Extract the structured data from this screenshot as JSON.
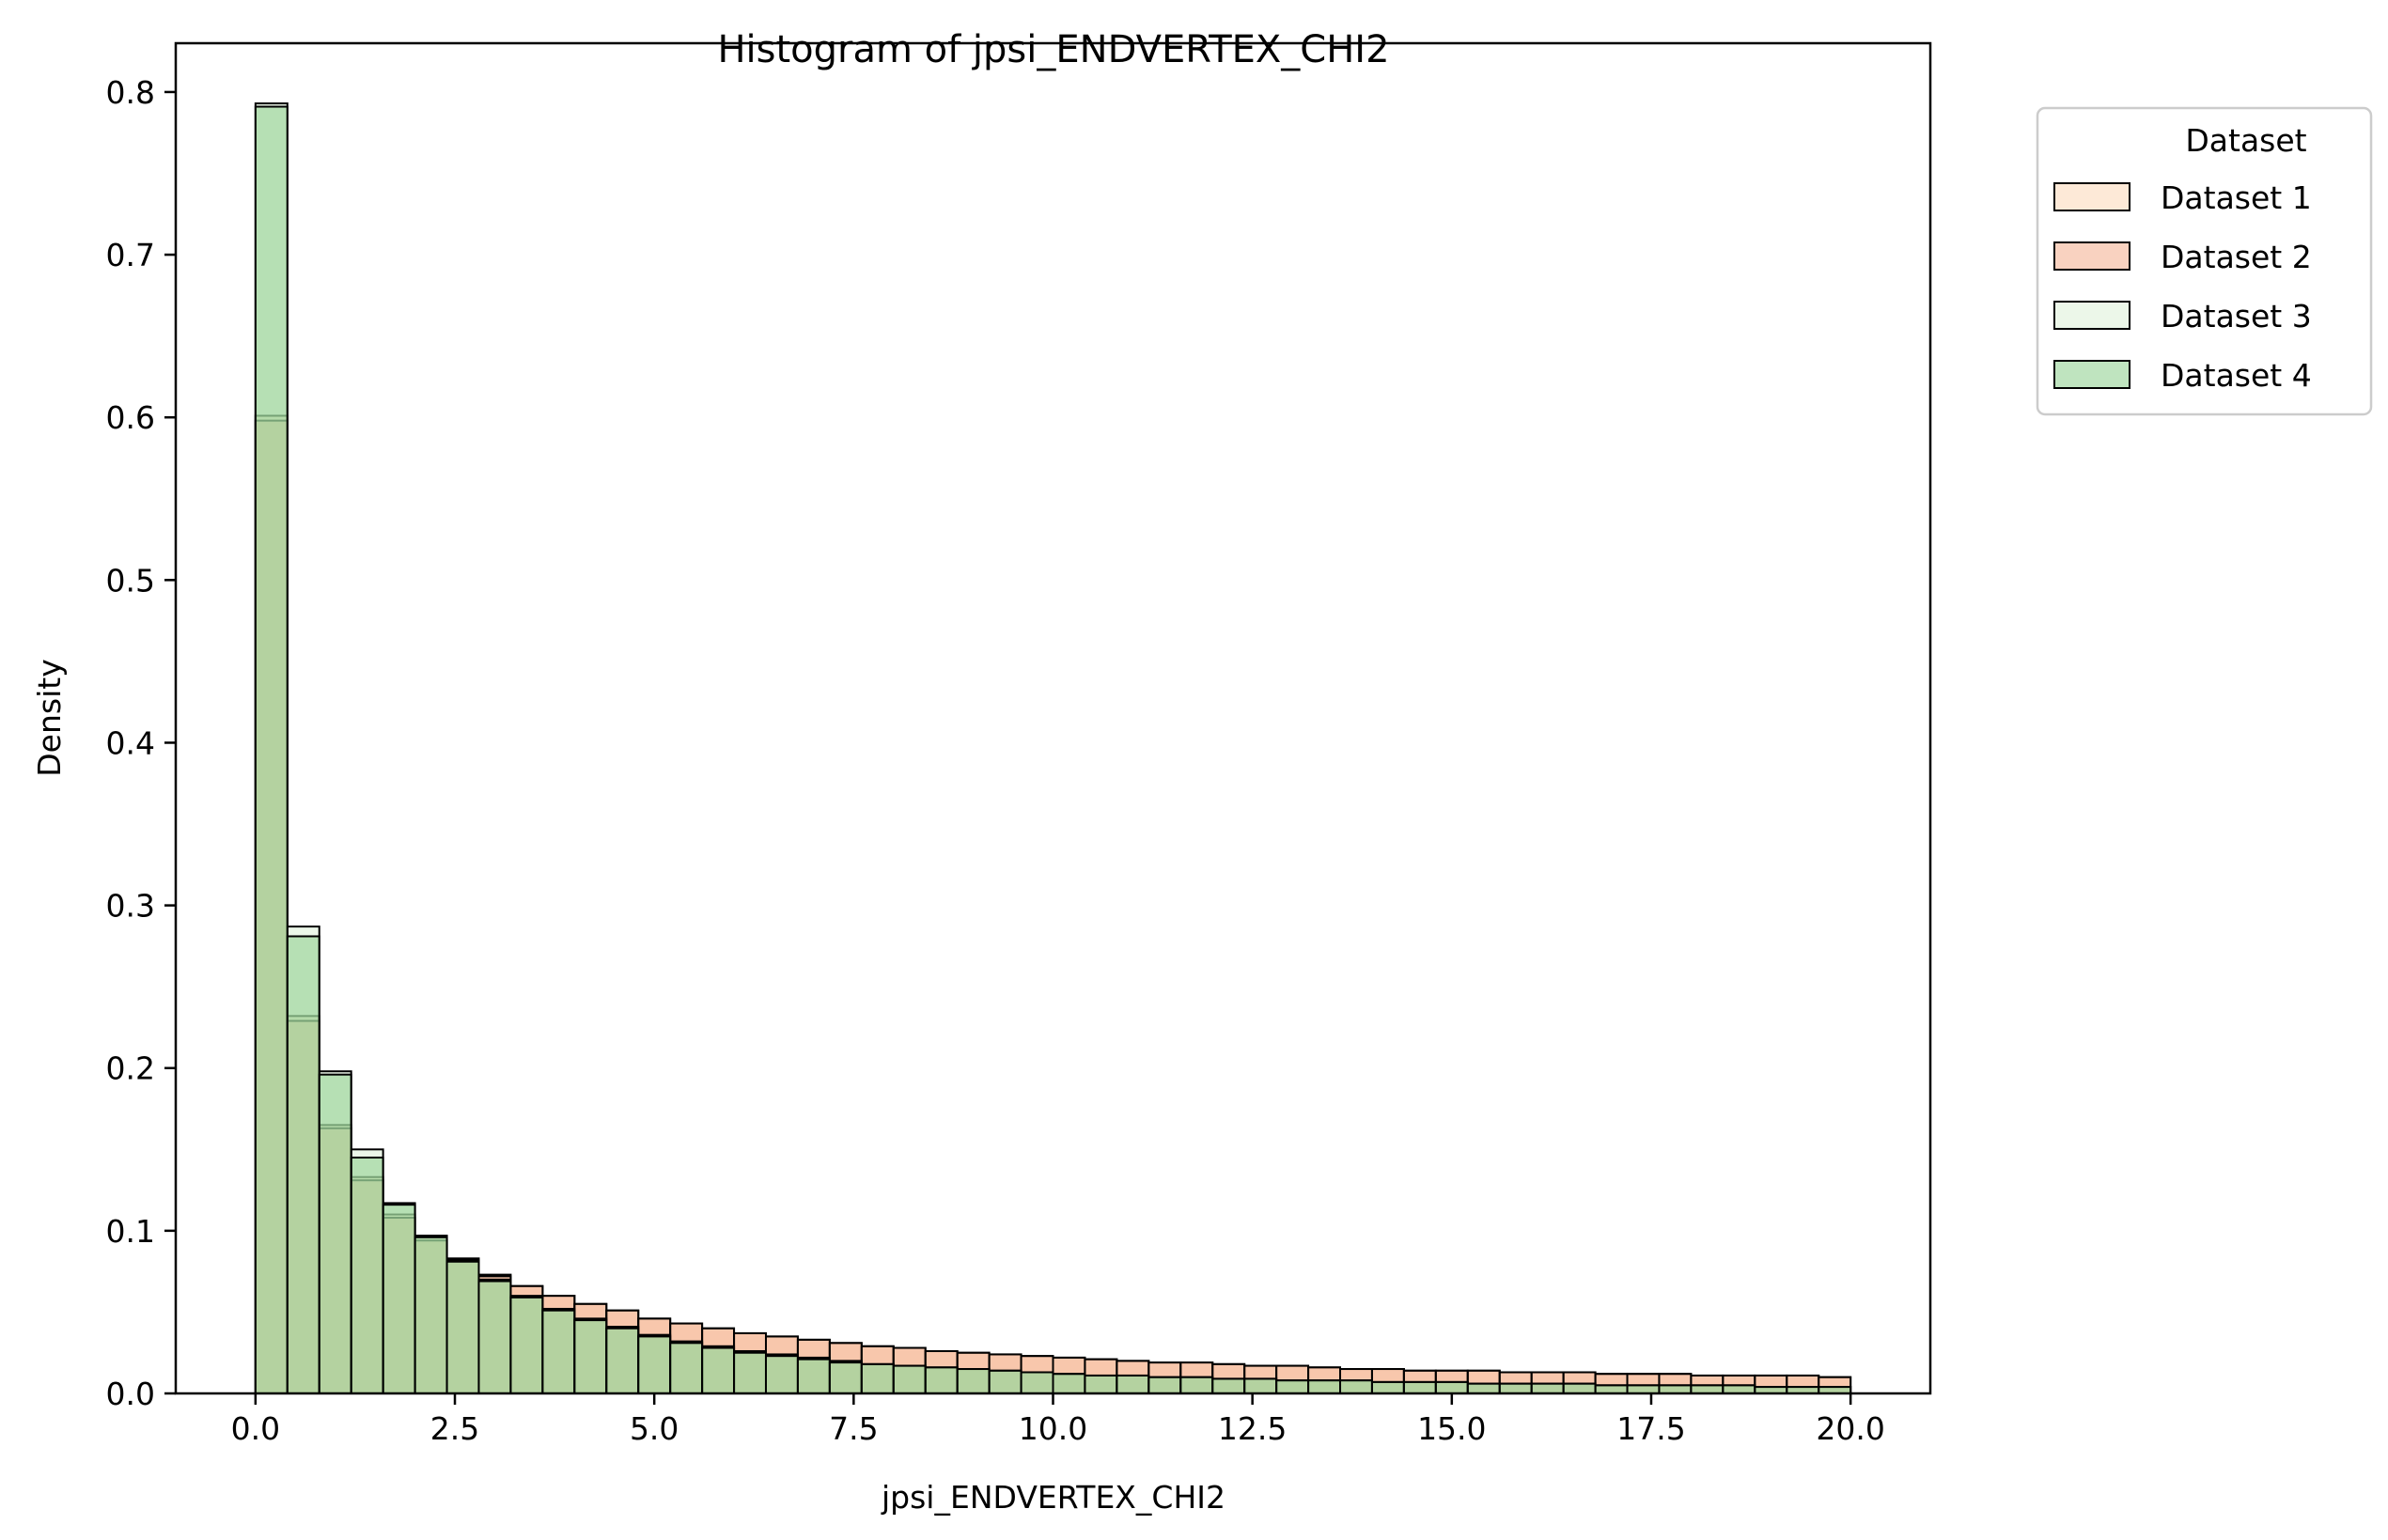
{
  "chart_data": {
    "type": "bar",
    "title": "Histogram of jpsi_ENDVERTEX_CHI2",
    "xlabel": "jpsi_ENDVERTEX_CHI2",
    "ylabel": "Density",
    "xlim": [
      -1.0,
      21.0
    ],
    "ylim": [
      0,
      0.83
    ],
    "xticks": [
      0,
      2.5,
      5,
      7.5,
      10,
      12.5,
      15,
      17.5,
      20
    ],
    "xtick_labels": [
      "0.0",
      "2.5",
      "5.0",
      "7.5",
      "10.0",
      "12.5",
      "15.0",
      "17.5",
      "20.0"
    ],
    "yticks": [
      0,
      0.1,
      0.2,
      0.3,
      0.4,
      0.5,
      0.6,
      0.7,
      0.8
    ],
    "ytick_labels": [
      "0.0",
      "0.1",
      "0.2",
      "0.3",
      "0.4",
      "0.5",
      "0.6",
      "0.7",
      "0.8"
    ],
    "bin_start": 0,
    "bin_width": 0.4,
    "grid": false,
    "legend": {
      "title": "Dataset",
      "placement": "outside upper right"
    },
    "series": [
      {
        "name": "Dataset 1",
        "color": "#fbd3b0",
        "values": [
          0.601,
          0.232,
          0.165,
          0.133,
          0.11,
          0.096,
          0.083,
          0.073,
          0.066,
          0.06,
          0.055,
          0.051,
          0.046,
          0.043,
          0.04,
          0.037,
          0.035,
          0.033,
          0.031,
          0.029,
          0.028,
          0.026,
          0.025,
          0.024,
          0.023,
          0.022,
          0.021,
          0.02,
          0.019,
          0.019,
          0.018,
          0.017,
          0.017,
          0.016,
          0.015,
          0.015,
          0.014,
          0.014,
          0.014,
          0.013,
          0.013,
          0.013,
          0.012,
          0.012,
          0.012,
          0.011,
          0.011,
          0.011,
          0.011,
          0.01
        ]
      },
      {
        "name": "Dataset 2",
        "color": "#f4a582",
        "values": [
          0.598,
          0.229,
          0.163,
          0.131,
          0.108,
          0.094,
          0.082,
          0.072,
          0.066,
          0.06,
          0.055,
          0.051,
          0.046,
          0.043,
          0.04,
          0.037,
          0.035,
          0.033,
          0.031,
          0.029,
          0.028,
          0.026,
          0.025,
          0.024,
          0.023,
          0.022,
          0.021,
          0.02,
          0.019,
          0.019,
          0.018,
          0.017,
          0.017,
          0.016,
          0.015,
          0.015,
          0.014,
          0.014,
          0.014,
          0.013,
          0.013,
          0.013,
          0.012,
          0.012,
          0.012,
          0.011,
          0.011,
          0.011,
          0.011,
          0.01
        ]
      },
      {
        "name": "Dataset 3",
        "color": "#d9f0d3",
        "values": [
          0.793,
          0.287,
          0.198,
          0.15,
          0.117,
          0.097,
          0.082,
          0.07,
          0.06,
          0.052,
          0.046,
          0.041,
          0.036,
          0.032,
          0.029,
          0.026,
          0.024,
          0.022,
          0.02,
          0.018,
          0.017,
          0.016,
          0.015,
          0.014,
          0.013,
          0.012,
          0.011,
          0.011,
          0.01,
          0.01,
          0.009,
          0.009,
          0.008,
          0.008,
          0.008,
          0.007,
          0.007,
          0.007,
          0.006,
          0.006,
          0.006,
          0.006,
          0.005,
          0.005,
          0.005,
          0.005,
          0.005,
          0.004,
          0.004,
          0.004
        ]
      },
      {
        "name": "Dataset 4",
        "color": "#7fc97f",
        "values": [
          0.791,
          0.281,
          0.196,
          0.145,
          0.116,
          0.096,
          0.081,
          0.069,
          0.059,
          0.051,
          0.045,
          0.04,
          0.035,
          0.031,
          0.028,
          0.025,
          0.023,
          0.021,
          0.019,
          0.018,
          0.017,
          0.016,
          0.015,
          0.014,
          0.013,
          0.012,
          0.011,
          0.011,
          0.01,
          0.01,
          0.009,
          0.009,
          0.008,
          0.008,
          0.008,
          0.007,
          0.007,
          0.007,
          0.006,
          0.006,
          0.006,
          0.006,
          0.005,
          0.005,
          0.005,
          0.005,
          0.005,
          0.004,
          0.004,
          0.004
        ]
      }
    ]
  }
}
